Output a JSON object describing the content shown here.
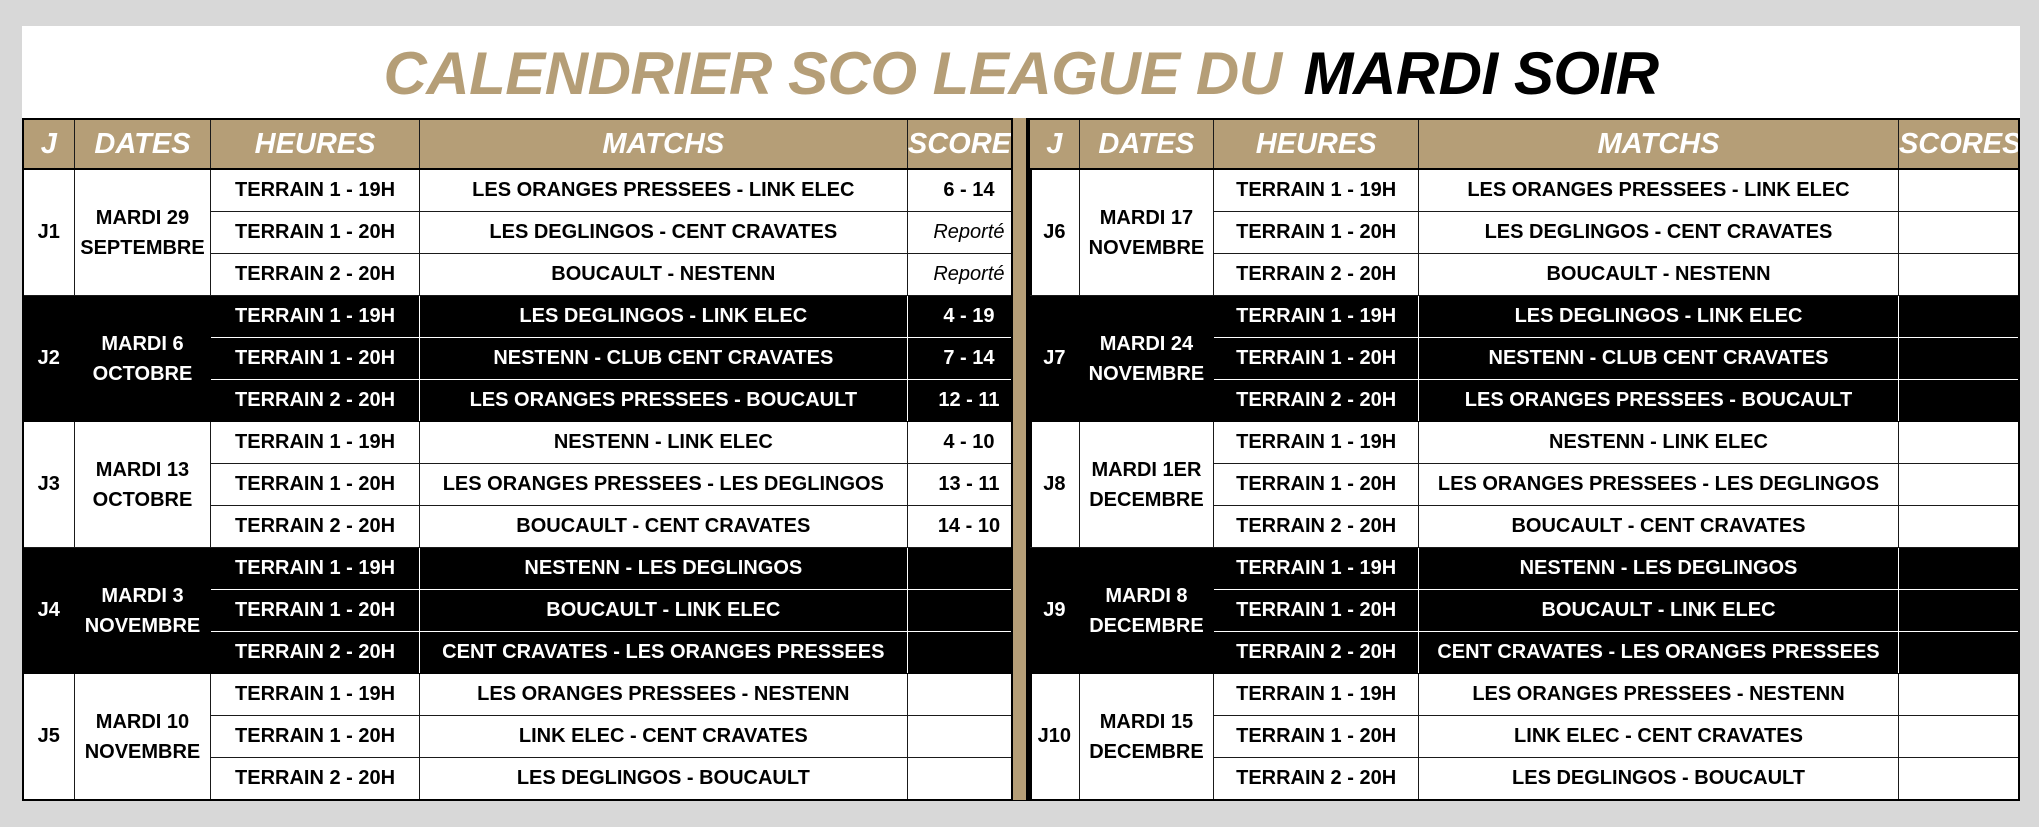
{
  "title": {
    "part1": "CALENDRIER SCO LEAGUE DU",
    "part2": "MARDI SOIR"
  },
  "headers": {
    "j": "J",
    "dates": "DATES",
    "heures": "HEURES",
    "matchs": "MATCHS",
    "scores": "SCORES"
  },
  "colors": {
    "gold": "#b59e77",
    "dark": "#000000",
    "light": "#ffffff"
  },
  "left": [
    {
      "day": "J1",
      "date": "MARDI 29 SEPTEMBRE",
      "dark": false,
      "rows": [
        {
          "heure": "TERRAIN 1 - 19H",
          "match": "LES ORANGES PRESSEES - LINK ELEC",
          "score": "6 - 14"
        },
        {
          "heure": "TERRAIN 1 - 20H",
          "match": "LES DEGLINGOS - CENT CRAVATES",
          "score": "Reporté"
        },
        {
          "heure": "TERRAIN 2 - 20H",
          "match": "BOUCAULT - NESTENN",
          "score": "Reporté"
        }
      ]
    },
    {
      "day": "J2",
      "date": "MARDI 6 OCTOBRE",
      "dark": true,
      "rows": [
        {
          "heure": "TERRAIN 1 - 19H",
          "match": "LES DEGLINGOS - LINK ELEC",
          "score": "4 - 19"
        },
        {
          "heure": "TERRAIN 1 - 20H",
          "match": "NESTENN - CLUB CENT CRAVATES",
          "score": "7 - 14"
        },
        {
          "heure": "TERRAIN 2 - 20H",
          "match": "LES ORANGES PRESSEES - BOUCAULT",
          "score": "12 - 11"
        }
      ]
    },
    {
      "day": "J3",
      "date": "MARDI 13 OCTOBRE",
      "dark": false,
      "rows": [
        {
          "heure": "TERRAIN 1 - 19H",
          "match": "NESTENN - LINK ELEC",
          "score": "4 - 10"
        },
        {
          "heure": "TERRAIN 1 - 20H",
          "match": "LES ORANGES PRESSEES - LES DEGLINGOS",
          "score": "13 - 11"
        },
        {
          "heure": "TERRAIN 2 - 20H",
          "match": "BOUCAULT - CENT CRAVATES",
          "score": "14 - 10"
        }
      ]
    },
    {
      "day": "J4",
      "date": "MARDI 3 NOVEMBRE",
      "dark": true,
      "rows": [
        {
          "heure": "TERRAIN 1 - 19H",
          "match": "NESTENN - LES DEGLINGOS",
          "score": ""
        },
        {
          "heure": "TERRAIN 1 - 20H",
          "match": "BOUCAULT - LINK ELEC",
          "score": ""
        },
        {
          "heure": "TERRAIN 2 - 20H",
          "match": "CENT CRAVATES - LES ORANGES PRESSEES",
          "score": ""
        }
      ]
    },
    {
      "day": "J5",
      "date": "MARDI 10 NOVEMBRE",
      "dark": false,
      "rows": [
        {
          "heure": "TERRAIN 1 - 19H",
          "match": "LES ORANGES PRESSEES - NESTENN",
          "score": ""
        },
        {
          "heure": "TERRAIN 1 - 20H",
          "match": "LINK ELEC - CENT CRAVATES",
          "score": ""
        },
        {
          "heure": "TERRAIN 2 - 20H",
          "match": "LES DEGLINGOS - BOUCAULT",
          "score": ""
        }
      ]
    }
  ],
  "right": [
    {
      "day": "J6",
      "date": "MARDI 17 NOVEMBRE",
      "dark": false,
      "rows": [
        {
          "heure": "TERRAIN 1 - 19H",
          "match": "LES ORANGES PRESSEES - LINK ELEC",
          "score": ""
        },
        {
          "heure": "TERRAIN 1 - 20H",
          "match": "LES DEGLINGOS - CENT CRAVATES",
          "score": ""
        },
        {
          "heure": "TERRAIN 2 - 20H",
          "match": "BOUCAULT - NESTENN",
          "score": ""
        }
      ]
    },
    {
      "day": "J7",
      "date": "MARDI 24 NOVEMBRE",
      "dark": true,
      "rows": [
        {
          "heure": "TERRAIN 1 - 19H",
          "match": "LES DEGLINGOS - LINK ELEC",
          "score": ""
        },
        {
          "heure": "TERRAIN 1 - 20H",
          "match": "NESTENN - CLUB CENT CRAVATES",
          "score": ""
        },
        {
          "heure": "TERRAIN 2 - 20H",
          "match": "LES ORANGES PRESSEES - BOUCAULT",
          "score": ""
        }
      ]
    },
    {
      "day": "J8",
      "date": "MARDI 1ER DECEMBRE",
      "dark": false,
      "rows": [
        {
          "heure": "TERRAIN 1 - 19H",
          "match": "NESTENN - LINK ELEC",
          "score": ""
        },
        {
          "heure": "TERRAIN 1 - 20H",
          "match": "LES ORANGES PRESSEES - LES DEGLINGOS",
          "score": ""
        },
        {
          "heure": "TERRAIN 2 - 20H",
          "match": "BOUCAULT - CENT CRAVATES",
          "score": ""
        }
      ]
    },
    {
      "day": "J9",
      "date": "MARDI 8 DECEMBRE",
      "dark": true,
      "rows": [
        {
          "heure": "TERRAIN 1 - 19H",
          "match": "NESTENN - LES DEGLINGOS",
          "score": ""
        },
        {
          "heure": "TERRAIN 1 - 20H",
          "match": "BOUCAULT - LINK ELEC",
          "score": ""
        },
        {
          "heure": "TERRAIN 2 - 20H",
          "match": "CENT CRAVATES - LES ORANGES PRESSEES",
          "score": ""
        }
      ]
    },
    {
      "day": "J10",
      "date": "MARDI 15 DECEMBRE",
      "dark": false,
      "rows": [
        {
          "heure": "TERRAIN 1 - 19H",
          "match": "LES ORANGES PRESSEES - NESTENN",
          "score": ""
        },
        {
          "heure": "TERRAIN 1 - 20H",
          "match": "LINK ELEC - CENT CRAVATES",
          "score": ""
        },
        {
          "heure": "TERRAIN 2 - 20H",
          "match": "LES DEGLINGOS - BOUCAULT",
          "score": ""
        }
      ]
    }
  ]
}
